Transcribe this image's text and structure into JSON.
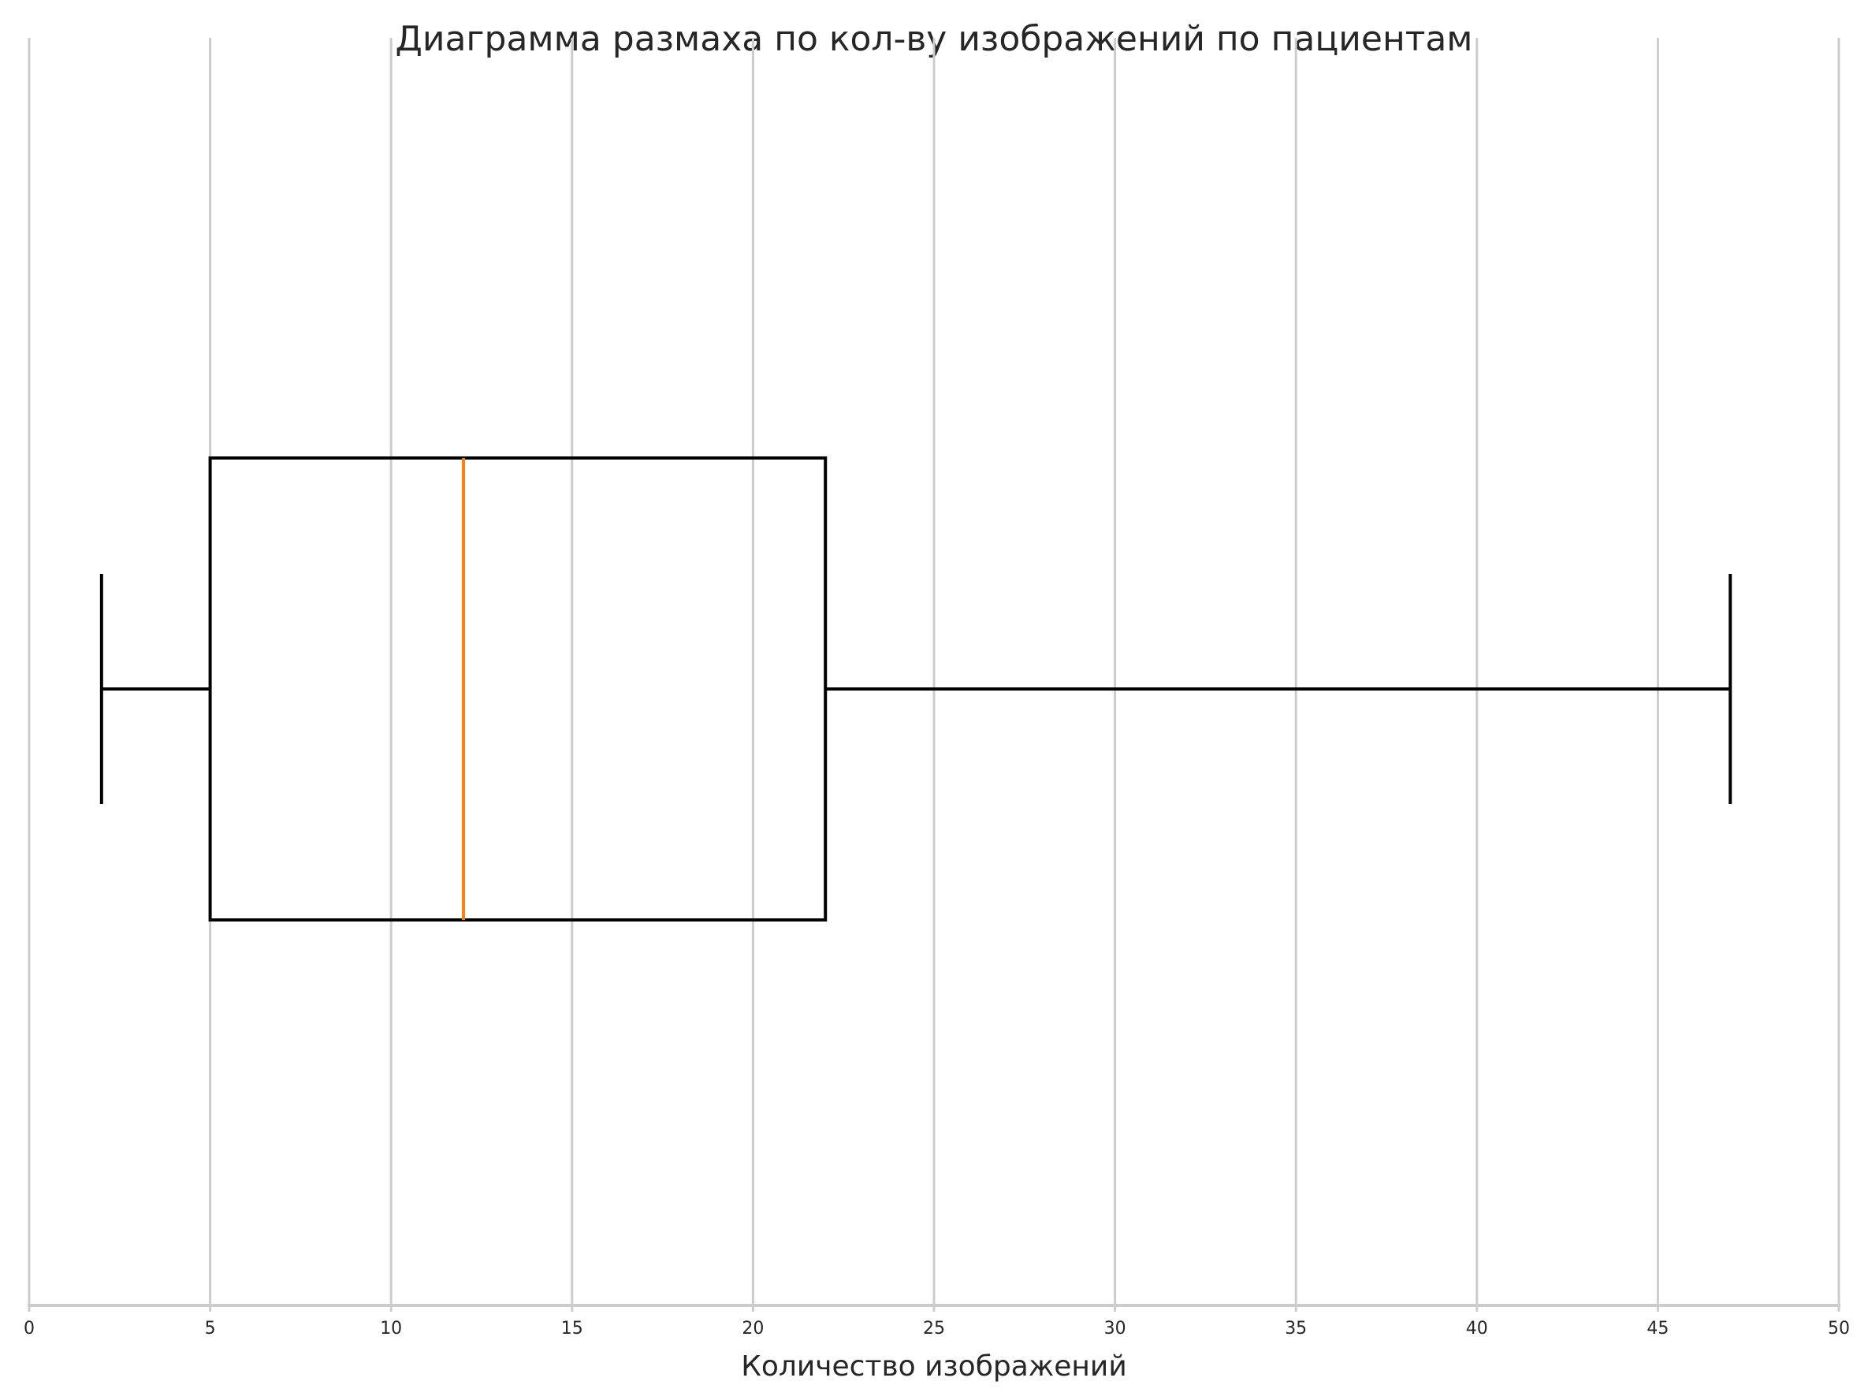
{
  "chart_data": {
    "type": "box",
    "orientation": "horizontal",
    "title": "Диаграмма размаха по кол-ву изображений по пациентам",
    "xlabel": "Количество изображений",
    "ylabel": "",
    "xlim": [
      0,
      50
    ],
    "xticks": [
      "0",
      "5",
      "10",
      "15",
      "20",
      "25",
      "30",
      "35",
      "40",
      "45",
      "50"
    ],
    "grid": "vertical",
    "boxes": [
      {
        "whisker_low": 2,
        "q1": 5,
        "median": 12,
        "q3": 22,
        "whisker_high": 47
      }
    ],
    "colors": {
      "box": "#000000",
      "median": "#ff7f0e",
      "grid": "#cccccc",
      "text": "#262626"
    }
  }
}
